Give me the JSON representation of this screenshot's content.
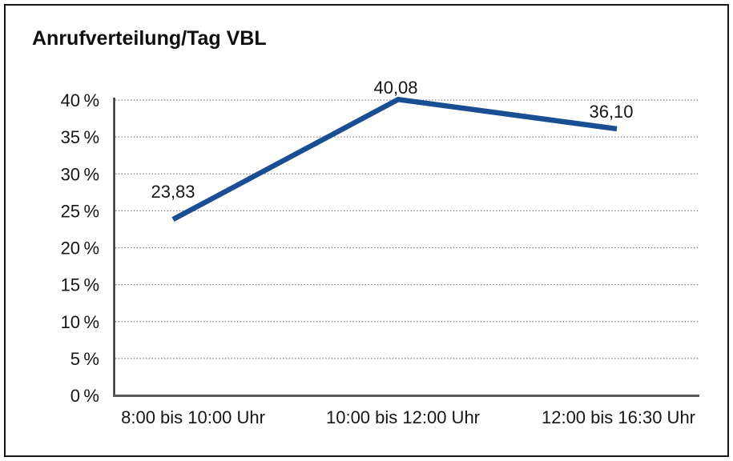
{
  "colors": {
    "line": "#1a4e92",
    "axis_y": "#1a1a1a",
    "axis_x": "#5a5a5a",
    "grid": "#787878",
    "text": "#161616",
    "frame": "#161616",
    "background": "#ffffff"
  },
  "chart_data": {
    "type": "line",
    "title": "Anrufverteilung/Tag VBL",
    "categories": [
      "8:00 bis 10:00 Uhr",
      "10:00 bis 12:00 Uhr",
      "12:00 bis 16:30 Uhr"
    ],
    "values": [
      23.83,
      40.08,
      36.1
    ],
    "point_labels": [
      "23,83",
      "40,08",
      "36,10"
    ],
    "y_ticks": [
      "0 %",
      "5 %",
      "10 %",
      "15 %",
      "20 %",
      "25 %",
      "30 %",
      "35 %",
      "40 %"
    ],
    "ylim": [
      0,
      40
    ],
    "y_step": 5,
    "xlabel": "",
    "ylabel": "",
    "grid": "horizontal-dotted",
    "legend": "none",
    "line_color": "#1a4e92"
  }
}
